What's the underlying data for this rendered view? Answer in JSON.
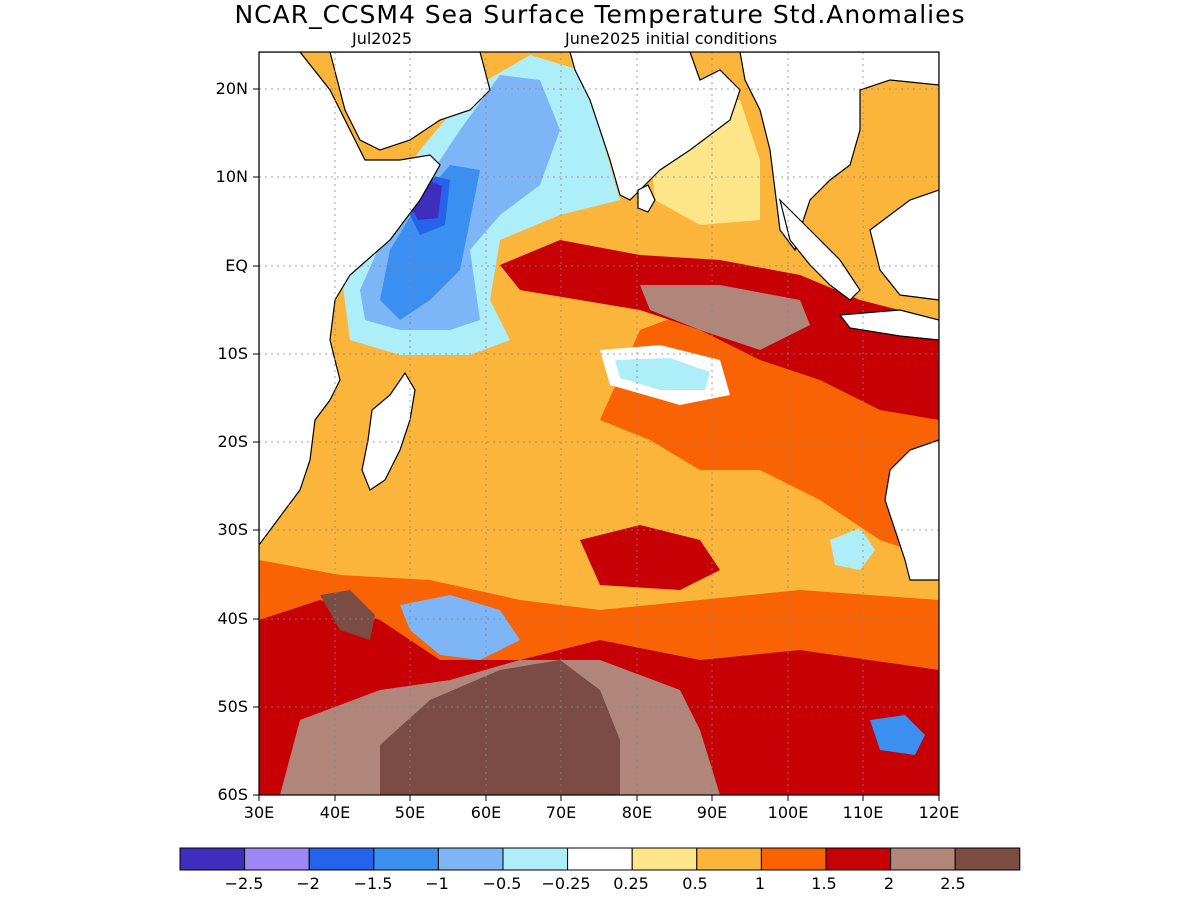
{
  "title": "NCAR_CCSM4 Sea Surface Temperature Std.Anomalies",
  "subtitle_left": "Jul2025",
  "subtitle_right": "June2025 initial conditions",
  "lat_labels": [
    "20N",
    "10N",
    "EQ",
    "10S",
    "20S",
    "30S",
    "40S",
    "50S",
    "60S"
  ],
  "lon_labels": [
    "30E",
    "40E",
    "50E",
    "60E",
    "70E",
    "80E",
    "90E",
    "100E",
    "110E",
    "120E"
  ],
  "colorbar": {
    "colors": [
      "#3f2dbe",
      "#9b87f5",
      "#2563eb",
      "#3b8ff0",
      "#7db5f7",
      "#aeeef8",
      "#ffffff",
      "#fde58a",
      "#fbb53a",
      "#f96304",
      "#c70006",
      "#b0867b",
      "#7a4c43"
    ],
    "labels": [
      "−2.5",
      "−2",
      "−1.5",
      "−1",
      "−0.5",
      "−0.25",
      "0.25",
      "0.5",
      "1",
      "1.5",
      "2",
      "2.5"
    ]
  }
}
